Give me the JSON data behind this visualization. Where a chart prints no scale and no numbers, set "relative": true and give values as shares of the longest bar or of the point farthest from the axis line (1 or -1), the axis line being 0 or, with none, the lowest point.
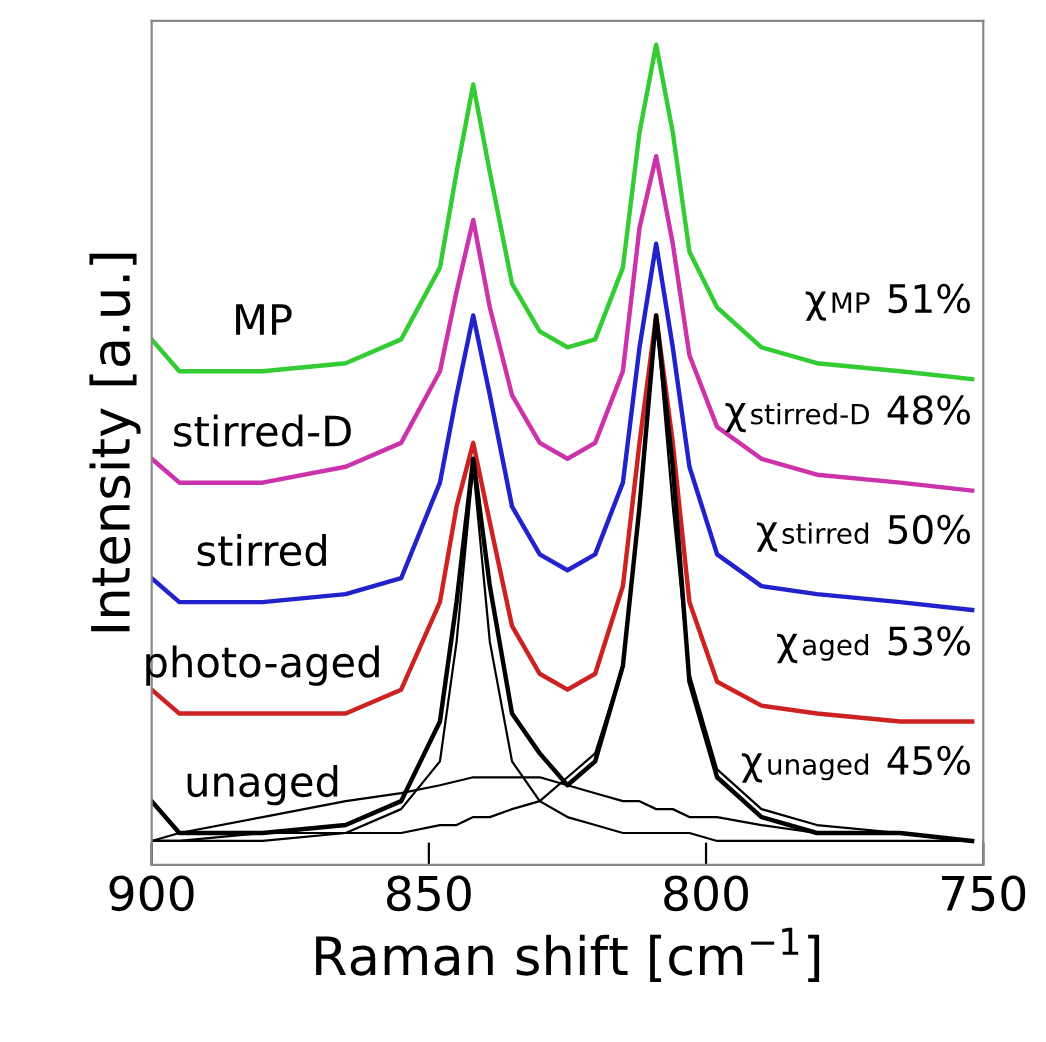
{
  "chart_data": {
    "type": "line",
    "relative": true,
    "xlabel": "Raman shift [cm$^{−1}$]",
    "ylabel": "Intensity [a.u.]",
    "x": [
      900,
      895,
      880,
      865,
      855,
      848,
      845,
      842,
      839,
      835,
      830,
      825,
      820,
      815,
      812,
      809,
      806,
      803,
      798,
      790,
      780,
      765,
      752
    ],
    "xlim": [
      900,
      750
    ],
    "xticks": [
      900,
      850,
      800,
      750
    ],
    "grid": false,
    "legend": false,
    "marker": "none",
    "line_style": "solid",
    "tick_labels": "x",
    "series": [
      {
        "name": "MP",
        "color": "#33cc33",
        "values": [
          0.63,
          0.59,
          0.59,
          0.6,
          0.63,
          0.72,
          0.84,
          0.95,
          0.84,
          0.7,
          0.64,
          0.62,
          0.63,
          0.72,
          0.89,
          1.0,
          0.89,
          0.74,
          0.67,
          0.62,
          0.6,
          0.59,
          0.58
        ]
      },
      {
        "name": "stirred-D",
        "color": "#cc33aa",
        "values": [
          0.48,
          0.45,
          0.45,
          0.47,
          0.5,
          0.59,
          0.69,
          0.78,
          0.67,
          0.56,
          0.5,
          0.48,
          0.5,
          0.59,
          0.77,
          0.86,
          0.75,
          0.61,
          0.52,
          0.48,
          0.46,
          0.45,
          0.44
        ]
      },
      {
        "name": "stirred",
        "color": "#2222cc",
        "values": [
          0.33,
          0.3,
          0.3,
          0.31,
          0.33,
          0.45,
          0.56,
          0.66,
          0.56,
          0.42,
          0.36,
          0.34,
          0.36,
          0.45,
          0.62,
          0.75,
          0.62,
          0.47,
          0.36,
          0.32,
          0.31,
          0.3,
          0.29
        ]
      },
      {
        "name": "photo-aged",
        "color": "#cc2222",
        "values": [
          0.19,
          0.16,
          0.16,
          0.16,
          0.19,
          0.3,
          0.42,
          0.5,
          0.4,
          0.27,
          0.21,
          0.19,
          0.21,
          0.32,
          0.5,
          0.66,
          0.5,
          0.3,
          0.2,
          0.17,
          0.16,
          0.15,
          0.15
        ]
      },
      {
        "name": "unaged",
        "color": "#000000",
        "values": [
          0.05,
          0.01,
          0.01,
          0.02,
          0.05,
          0.15,
          0.3,
          0.48,
          0.32,
          0.16,
          0.11,
          0.07,
          0.1,
          0.22,
          0.42,
          0.66,
          0.47,
          0.2,
          0.08,
          0.03,
          0.01,
          0.01,
          0.0
        ]
      },
      {
        "color": "#000000",
        "values": [
          0.0,
          0.0,
          0.0,
          0.01,
          0.04,
          0.1,
          0.25,
          0.47,
          0.25,
          0.1,
          0.05,
          0.03,
          0.02,
          0.01,
          0.01,
          0.01,
          0.01,
          0.01,
          0.0,
          0.0,
          0.0,
          0.0,
          0.0
        ]
      },
      {
        "color": "#000000",
        "values": [
          0.0,
          0.0,
          0.01,
          0.01,
          0.01,
          0.02,
          0.02,
          0.03,
          0.03,
          0.04,
          0.05,
          0.08,
          0.11,
          0.22,
          0.42,
          0.66,
          0.42,
          0.21,
          0.09,
          0.04,
          0.02,
          0.01,
          0.0
        ]
      },
      {
        "color": "#000000",
        "values": [
          0.0,
          0.01,
          0.03,
          0.05,
          0.06,
          0.07,
          0.075,
          0.08,
          0.08,
          0.08,
          0.08,
          0.07,
          0.06,
          0.05,
          0.05,
          0.04,
          0.04,
          0.03,
          0.03,
          0.02,
          0.01,
          0.01,
          0.0
        ]
      }
    ],
    "annotations": [
      "χ$_{MP}$ 51%",
      "χ$_{stirred-D}$ 48%",
      "χ$_{stirred}$ 50%",
      "χ$_{aged}$ 53%",
      "χ$_{unaged}$ 45%"
    ]
  }
}
